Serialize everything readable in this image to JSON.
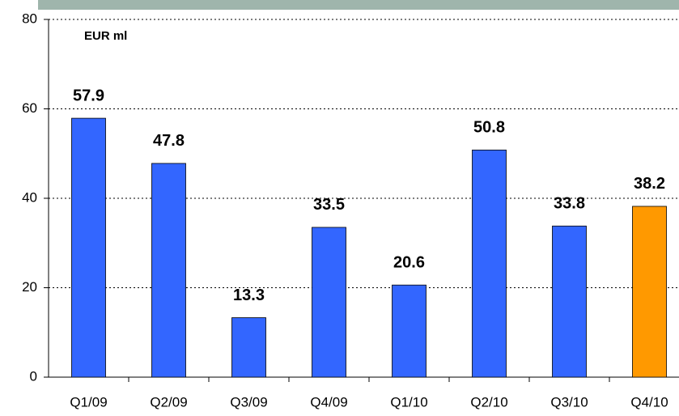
{
  "chart_data": {
    "type": "bar",
    "annotation": "EUR ml",
    "categories": [
      "Q1/09",
      "Q2/09",
      "Q3/09",
      "Q4/09",
      "Q1/10",
      "Q2/10",
      "Q3/10",
      "Q4/10"
    ],
    "values": [
      57.9,
      47.8,
      13.3,
      33.5,
      20.6,
      50.8,
      33.8,
      38.2
    ],
    "colors": [
      "#3366ff",
      "#3366ff",
      "#3366ff",
      "#3366ff",
      "#3366ff",
      "#3366ff",
      "#3366ff",
      "#ff9900"
    ],
    "ylim": [
      0,
      80
    ],
    "yticks": [
      0,
      20,
      40,
      60,
      80
    ],
    "grid": true
  }
}
